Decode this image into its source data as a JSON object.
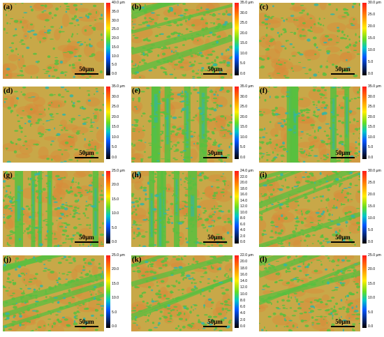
{
  "panels": [
    {
      "label": "(a)",
      "scale": "50μm",
      "ticks": [
        "40.0 μm",
        "35.0",
        "30.0",
        "25.0",
        "20.0",
        "15.0",
        "10.0",
        "5.0",
        "0.0"
      ],
      "style": "orange"
    },
    {
      "label": "(b)",
      "scale": "50μm",
      "ticks": [
        "35.0 μm",
        "30.0",
        "25.0",
        "20.0",
        "15.0",
        "10.0",
        "5.0",
        "0.0"
      ],
      "style": "diag"
    },
    {
      "label": "(c)",
      "scale": "50μm",
      "ticks": [
        "30.0 μm",
        "25.0",
        "20.0",
        "15.0",
        "10.0",
        "5.0",
        "0.0"
      ],
      "style": "orange"
    },
    {
      "label": "(d)",
      "scale": "50μm",
      "ticks": [
        "35.0 μm",
        "30.0",
        "25.0",
        "20.0",
        "15.0",
        "10.0",
        "5.0",
        "0.0"
      ],
      "style": "orange"
    },
    {
      "label": "(e)",
      "scale": "50μm",
      "ticks": [
        "35.0 μm",
        "30.0",
        "25.0",
        "20.0",
        "15.0",
        "10.0",
        "5.0",
        "0.0"
      ],
      "style": "vert"
    },
    {
      "label": "(f)",
      "scale": "50μm",
      "ticks": [
        "35.0 μm",
        "30.0",
        "25.0",
        "20.0",
        "15.0",
        "10.0",
        "5.0",
        "0.0"
      ],
      "style": "vert"
    },
    {
      "label": "(g)",
      "scale": "50μm",
      "ticks": [
        "25.0 μm",
        "20.0",
        "15.0",
        "10.0",
        "5.0",
        "0.0"
      ],
      "style": "vert"
    },
    {
      "label": "(h)",
      "scale": "50μm",
      "ticks": [
        "24.0 μm",
        "22.0",
        "20.0",
        "18.0",
        "16.0",
        "14.0",
        "12.0",
        "10.0",
        "8.0",
        "6.0",
        "4.0",
        "2.0",
        "0.0"
      ],
      "style": "vert"
    },
    {
      "label": "(i)",
      "scale": "50μm",
      "ticks": [
        "30.0 μm",
        "25.0",
        "20.0",
        "15.0",
        "10.0",
        "5.0",
        "0.0"
      ],
      "style": "diag"
    },
    {
      "label": "(j)",
      "scale": "50μm",
      "ticks": [
        "25.0 μm",
        "20.0",
        "15.0",
        "10.0",
        "5.0",
        "0.0"
      ],
      "style": "diag"
    },
    {
      "label": "(k)",
      "scale": "50μm",
      "ticks": [
        "22.0 μm",
        "20.0",
        "18.0",
        "16.0",
        "14.0",
        "12.0",
        "10.0",
        "8.0",
        "6.0",
        "4.0",
        "2.0",
        "0.0"
      ],
      "style": "diag"
    },
    {
      "label": "(l)",
      "scale": "50μm",
      "ticks": [
        "25.0 μm",
        "20.0",
        "15.0",
        "10.0",
        "5.0",
        "0.0"
      ],
      "style": "diag"
    }
  ],
  "colors": {
    "base": "#c8a848",
    "orange": "#d98a3a",
    "green": "#58c040",
    "cyan": "#2fb6a8",
    "blue": "#1f7fd0"
  }
}
